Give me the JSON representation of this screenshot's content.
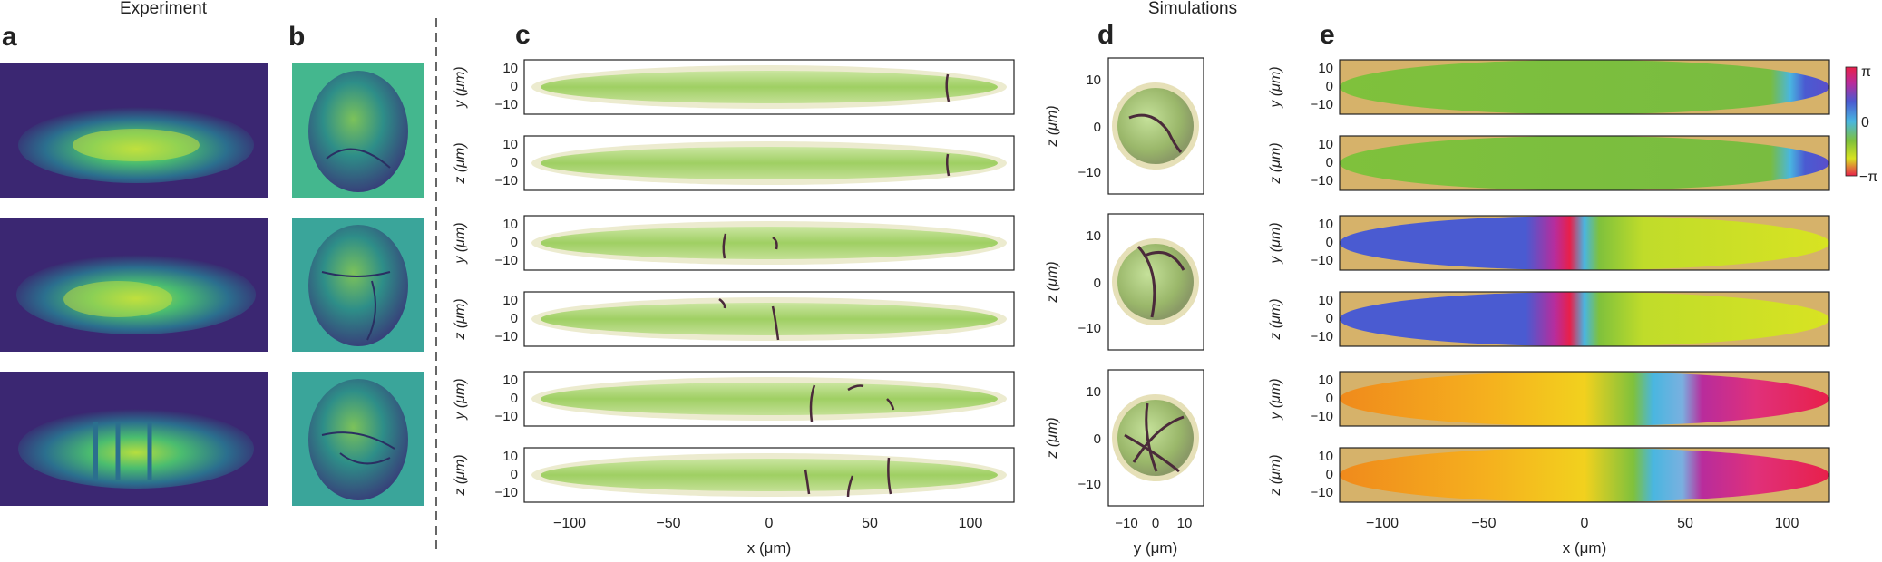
{
  "figure": {
    "headers": {
      "experiment": "Experiment",
      "simulations": "Simulations"
    },
    "panel_labels": {
      "a": "a",
      "b": "b",
      "c": "c",
      "d": "d",
      "e": "e"
    },
    "axes": {
      "x_label": "x (μm)",
      "y_label": "y (μm)",
      "z_label": "z (μm)",
      "x_ticks": [
        "−100",
        "−50",
        "0",
        "50",
        "100"
      ],
      "yz_ticks": [
        "10",
        "0",
        "−10"
      ],
      "d_y_ticks": [
        "10",
        "0",
        "−10"
      ],
      "d_x_ticks": [
        "−10",
        "0",
        "10"
      ]
    },
    "panel_c_rows": [
      "y",
      "z",
      "y",
      "z",
      "y",
      "z"
    ],
    "panel_e_rows": [
      "y",
      "z",
      "y",
      "z",
      "y",
      "z"
    ],
    "colorbar": {
      "top": "π",
      "mid": "0",
      "bottom": "−π"
    },
    "colors": {
      "cloud_green": "#a9d672",
      "cloud_edge": "#e6e4c6",
      "vortex": "#4a2a3a",
      "phase_green": "#7fc13c",
      "phase_blue": "#4a5bd1",
      "phase_yellow": "#d8e322",
      "phase_orange": "#f5a623",
      "phase_magenta": "#e0307a",
      "viridis_dark": "#3b1f6e",
      "viridis_teal": "#2aa085",
      "viridis_bright": "#8ed24a"
    }
  }
}
